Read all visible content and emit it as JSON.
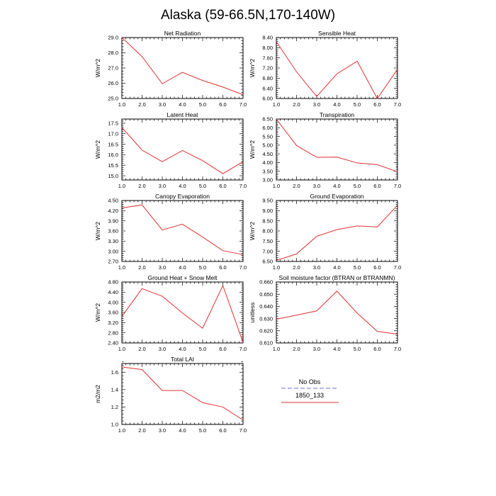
{
  "figure_title": "Alaska (59-66.5N,170-140W)",
  "legend": {
    "entries": [
      {
        "label": "No Obs",
        "color": "#8c8cd9",
        "dashed": true
      },
      {
        "label": "1850_133",
        "color": "#e03030",
        "dashed": false
      }
    ]
  },
  "chart_data": [
    {
      "type": "line",
      "title": "Net Radiation",
      "ylabel": "W/m^2",
      "x": [
        1,
        2,
        3,
        4,
        5,
        6,
        7
      ],
      "xlim": [
        1,
        7
      ],
      "xticks": [
        "1.0",
        "2.0",
        "3.0",
        "4.0",
        "5.0",
        "6.0",
        "7.0"
      ],
      "ylim": [
        25.0,
        29.0
      ],
      "yticks": [
        "25.0",
        "26.0",
        "27.0",
        "28.0",
        "29.0"
      ],
      "series": [
        {
          "name": "1850_133",
          "color": "#e03030",
          "values": [
            29.0,
            27.75,
            25.97,
            26.72,
            26.18,
            25.75,
            25.25
          ]
        }
      ]
    },
    {
      "type": "line",
      "title": "Sensible Heat",
      "ylabel": "W/m^2",
      "x": [
        1,
        2,
        3,
        4,
        5,
        6,
        7
      ],
      "xlim": [
        1,
        7
      ],
      "xticks": [
        "1.0",
        "2.0",
        "3.0",
        "4.0",
        "5.0",
        "6.0",
        "7.0"
      ],
      "ylim": [
        6.0,
        8.4
      ],
      "yticks": [
        "6.00",
        "6.40",
        "6.80",
        "7.20",
        "7.60",
        "8.00",
        "8.40"
      ],
      "series": [
        {
          "name": "1850_133",
          "color": "#e03030",
          "values": [
            8.24,
            7.05,
            6.08,
            6.97,
            7.47,
            6.0,
            7.15
          ]
        }
      ]
    },
    {
      "type": "line",
      "title": "Latent Heat",
      "ylabel": "W/m^2",
      "x": [
        1,
        2,
        3,
        4,
        5,
        6,
        7
      ],
      "xlim": [
        1,
        7
      ],
      "xticks": [
        "1.0",
        "2.0",
        "3.0",
        "4.0",
        "5.0",
        "6.0",
        "7.0"
      ],
      "ylim": [
        14.8,
        17.7
      ],
      "yticks": [
        "15.0",
        "15.5",
        "16.0",
        "16.5",
        "17.0",
        "17.5"
      ],
      "series": [
        {
          "name": "1850_133",
          "color": "#e03030",
          "values": [
            17.3,
            16.22,
            15.67,
            16.2,
            15.72,
            15.1,
            15.67
          ]
        }
      ]
    },
    {
      "type": "line",
      "title": "Transpiration",
      "ylabel": "W/m^2",
      "x": [
        1,
        2,
        3,
        4,
        5,
        6,
        7
      ],
      "xlim": [
        1,
        7
      ],
      "xticks": [
        "1.0",
        "2.0",
        "3.0",
        "4.0",
        "5.0",
        "6.0",
        "7.0"
      ],
      "ylim": [
        3.0,
        6.5
      ],
      "yticks": [
        "3.00",
        "3.50",
        "4.00",
        "4.50",
        "5.00",
        "5.50",
        "6.00",
        "6.50"
      ],
      "series": [
        {
          "name": "1850_133",
          "color": "#e03030",
          "values": [
            6.5,
            4.98,
            4.3,
            4.31,
            3.98,
            3.88,
            3.47
          ]
        }
      ]
    },
    {
      "type": "line",
      "title": "Canopy Evaporation",
      "ylabel": "W/m^2",
      "x": [
        1,
        2,
        3,
        4,
        5,
        6,
        7
      ],
      "xlim": [
        1,
        7
      ],
      "xticks": [
        "1.0",
        "2.0",
        "3.0",
        "4.0",
        "5.0",
        "6.0",
        "7.0"
      ],
      "ylim": [
        2.7,
        4.5
      ],
      "yticks": [
        "2.70",
        "3.00",
        "3.30",
        "3.60",
        "3.90",
        "4.20",
        "4.50"
      ],
      "series": [
        {
          "name": "1850_133",
          "color": "#e03030",
          "values": [
            4.28,
            4.37,
            3.63,
            3.8,
            3.42,
            3.02,
            2.9
          ]
        }
      ]
    },
    {
      "type": "line",
      "title": "Ground Evaporation",
      "ylabel": "W/m^2",
      "x": [
        1,
        2,
        3,
        4,
        5,
        6,
        7
      ],
      "xlim": [
        1,
        7
      ],
      "xticks": [
        "1.0",
        "2.0",
        "3.0",
        "4.0",
        "5.0",
        "6.0",
        "7.0"
      ],
      "ylim": [
        6.5,
        9.5
      ],
      "yticks": [
        "6.50",
        "7.00",
        "7.50",
        "8.00",
        "8.50",
        "9.00",
        "9.50"
      ],
      "series": [
        {
          "name": "1850_133",
          "color": "#e03030",
          "values": [
            6.55,
            6.87,
            7.74,
            8.07,
            8.25,
            8.2,
            9.27
          ]
        }
      ]
    },
    {
      "type": "line",
      "title": "Ground Heat + Snow Melt",
      "ylabel": "W/m^2",
      "x": [
        1,
        2,
        3,
        4,
        5,
        6,
        7
      ],
      "xlim": [
        1,
        7
      ],
      "xticks": [
        "1.0",
        "2.0",
        "3.0",
        "4.0",
        "5.0",
        "6.0",
        "7.0"
      ],
      "ylim": [
        2.4,
        4.8
      ],
      "yticks": [
        "2.40",
        "2.80",
        "3.20",
        "3.60",
        "4.00",
        "4.40",
        "4.80"
      ],
      "series": [
        {
          "name": "1850_133",
          "color": "#e03030",
          "values": [
            3.44,
            4.54,
            4.24,
            3.58,
            2.98,
            4.66,
            2.42
          ]
        }
      ]
    },
    {
      "type": "line",
      "title": "Soil moisture factor (BTRAN or BTRANMN)",
      "ylabel": "unitless",
      "x": [
        1,
        2,
        3,
        4,
        5,
        6,
        7
      ],
      "xlim": [
        1,
        7
      ],
      "xticks": [
        "1.0",
        "2.0",
        "3.0",
        "4.0",
        "5.0",
        "6.0",
        "7.0"
      ],
      "ylim": [
        0.61,
        0.66
      ],
      "yticks": [
        "0.610",
        "0.620",
        "0.630",
        "0.640",
        "0.650",
        "0.660"
      ],
      "series": [
        {
          "name": "1850_133",
          "color": "#e03030",
          "values": [
            0.6295,
            0.6328,
            0.6363,
            0.6525,
            0.6345,
            0.6195,
            0.6172
          ]
        }
      ]
    },
    {
      "type": "line",
      "title": "Total LAI",
      "ylabel": "m2/m2",
      "x": [
        1,
        2,
        3,
        4,
        5,
        6,
        7
      ],
      "xlim": [
        1,
        7
      ],
      "xticks": [
        "1.0",
        "2.0",
        "3.0",
        "4.0",
        "5.0",
        "6.0",
        "7.0"
      ],
      "ylim": [
        1.0,
        1.7
      ],
      "yticks": [
        "1.0",
        "1.2",
        "1.4",
        "1.6"
      ],
      "series": [
        {
          "name": "1850_133",
          "color": "#e03030",
          "values": [
            1.66,
            1.63,
            1.39,
            1.39,
            1.25,
            1.2,
            1.05
          ]
        }
      ]
    }
  ]
}
